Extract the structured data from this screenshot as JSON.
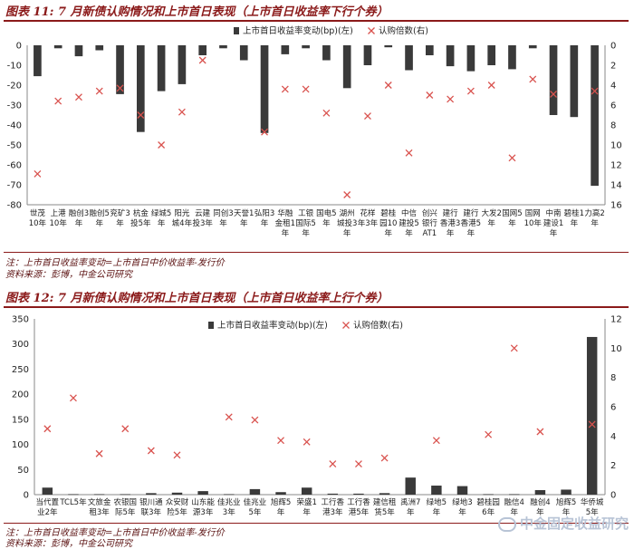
{
  "figure1": {
    "title": "图表 11: 7 月新债认购情况和上市首日表现（上市首日收益率下行个券）",
    "note": "注：上市首日收益率变动=上市首日中价收益率-发行价",
    "source": "资料来源：彭博，中金公司研究"
  },
  "figure2": {
    "title": "图表 12: 7 月新债认购情况和上市首日表现（上市首日收益率上行个券）",
    "note": "注：上市首日收益率变动=上市首日中价收益率-发行价",
    "source": "资料来源：彭博，中金公司研究"
  },
  "watermark": "中金固定收益研究",
  "colors": {
    "bar": "#3a3a3a",
    "marker": "#d9534f",
    "title": "#8b1a1a"
  },
  "chart_data": [
    {
      "type": "bar",
      "categories": [
        "世茂 10年",
        "上港 10年",
        "融创3 年",
        "融创5 年",
        "兖矿3 年",
        "杭金 投5年",
        "绿城5 年",
        "阳光 城4年",
        "云建 投3年",
        "同创3 年",
        "天誉1 年",
        "弘阳3 年",
        "华融 金租1 年",
        "工银 国际5 年",
        "国电5 年",
        "湖州 城投3 年",
        "花样 年3年",
        "碧桂 园10 年",
        "中信 建投5 年",
        "创兴 银行 AT1",
        "建行 香港3 年",
        "建行 香港5 年",
        "大发2 年",
        "国网5 年",
        "国网 10年",
        "中南 建设1 年",
        "碧桂1 年",
        "力高2 年"
      ],
      "series": [
        {
          "name": "上市首日收益率变动(bp)(左)",
          "axis": "left",
          "kind": "bar",
          "values": [
            -15.5,
            -1.5,
            -5.5,
            -2.5,
            -24.5,
            -43.5,
            -23,
            -19.5,
            -5,
            -1.5,
            -7.5,
            -44,
            -4.5,
            -1.5,
            -7.5,
            -21.5,
            -10,
            -1,
            -12.5,
            -5,
            -10.5,
            -13,
            -10,
            -12,
            -1.5,
            -35,
            -36,
            -70.5
          ]
        },
        {
          "name": "认购倍数(右)",
          "axis": "right",
          "kind": "marker",
          "values": [
            12.9,
            5.6,
            5.2,
            4.6,
            4.3,
            7.0,
            10.0,
            6.7,
            1.5,
            null,
            null,
            8.7,
            4.4,
            4.4,
            6.8,
            15.0,
            7.1,
            4.0,
            10.8,
            5.0,
            5.4,
            4.6,
            4.0,
            11.3,
            3.4,
            4.9,
            null,
            4.6
          ]
        }
      ],
      "y_left": {
        "min": -80,
        "max": 0,
        "ticks": [
          0,
          -10,
          -20,
          -30,
          -40,
          -50,
          -60,
          -70,
          -80
        ]
      },
      "y_right": {
        "min": 0,
        "max": 16,
        "inverted": true,
        "ticks": [
          0,
          2,
          4,
          6,
          8,
          10,
          12,
          14,
          16
        ]
      },
      "legend": "top-center"
    },
    {
      "type": "bar",
      "categories": [
        "当代置 业2年",
        "TCL5年",
        "文旅金 租3年",
        "农银国 际5年",
        "银川通 联3年",
        "众安财 险5年",
        "山东能 源3年",
        "佳兆业 3年",
        "佳兆业 5年",
        "旭辉5 年",
        "荣盛1 年",
        "工行香 港3年",
        "工行香 港5年",
        "建信租 赁5年",
        "禹洲7 年",
        "绿地5 年",
        "绿地3 年",
        "碧桂园 6年",
        "融信4 年",
        "融创4 年",
        "旭辉5 年",
        "华侨城 5年"
      ],
      "series": [
        {
          "name": "上市首日收益率变动(bp)(左)",
          "axis": "left",
          "kind": "bar",
          "values": [
            14,
            1,
            1,
            1,
            3,
            4,
            7,
            1,
            11,
            5,
            14,
            2,
            2,
            3,
            34,
            18,
            17,
            1,
            1,
            9,
            10,
            314
          ]
        },
        {
          "name": "认购倍数(右)",
          "axis": "right",
          "kind": "marker",
          "values": [
            4.5,
            6.6,
            2.8,
            4.5,
            3.0,
            2.7,
            null,
            5.3,
            5.1,
            3.7,
            3.6,
            2.1,
            2.1,
            2.5,
            null,
            3.7,
            null,
            4.1,
            10.0,
            4.3,
            null,
            4.8
          ]
        }
      ],
      "y_left": {
        "min": 0,
        "max": 350,
        "ticks": [
          0,
          50,
          100,
          150,
          200,
          250,
          300,
          350
        ]
      },
      "y_right": {
        "min": 0,
        "max": 12,
        "ticks": [
          0,
          2,
          4,
          6,
          8,
          10,
          12
        ]
      },
      "legend": "top-center"
    }
  ]
}
